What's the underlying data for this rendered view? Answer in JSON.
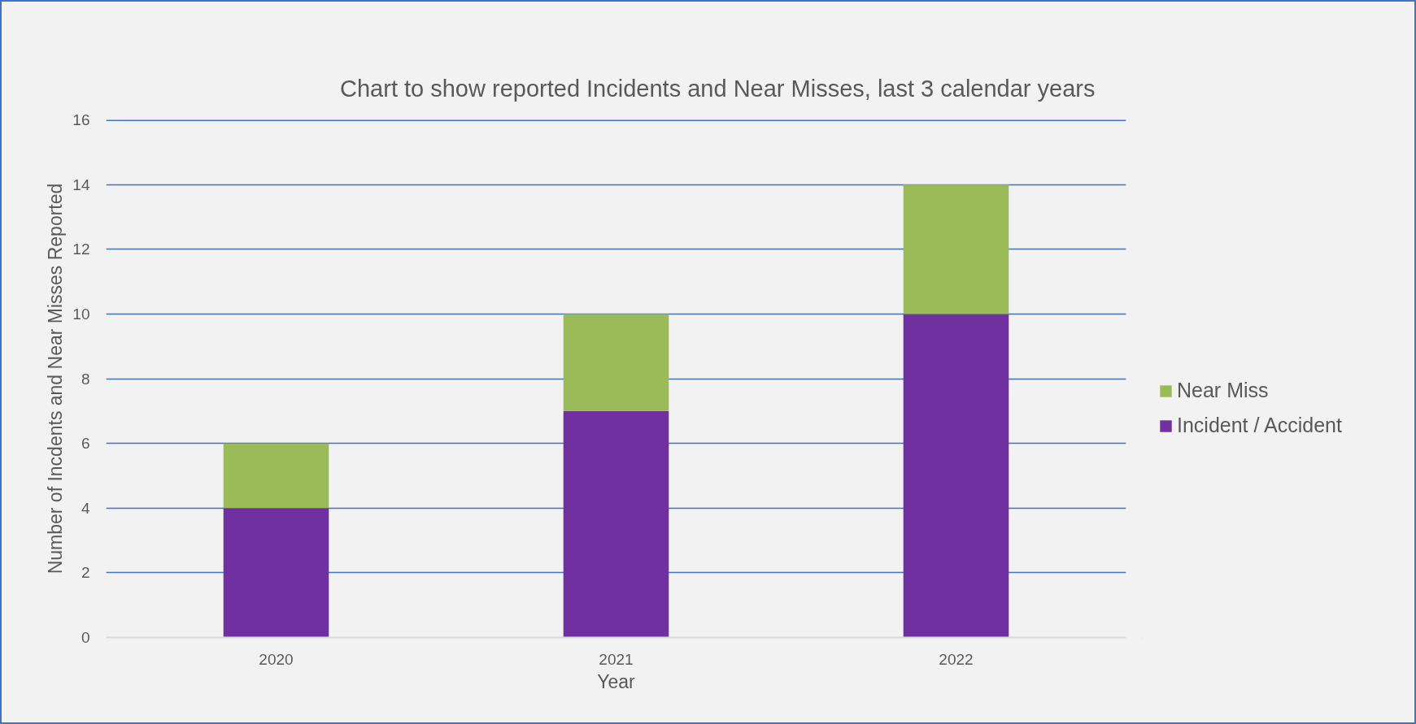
{
  "chart_data": {
    "type": "bar",
    "title": "Chart to show reported Incidents and Near Misses, last 3 calendar years",
    "xlabel": "Year",
    "ylabel": "Number of Incdents and Near Misses Reported",
    "categories": [
      "2020",
      "2021",
      "2022"
    ],
    "stacked": true,
    "series": [
      {
        "name": "Incident / Accident",
        "color": "#7030a0",
        "values": [
          4,
          7,
          10
        ]
      },
      {
        "name": "Near Miss",
        "color": "#9bbb59",
        "values": [
          2,
          3,
          4
        ]
      }
    ],
    "ylim": [
      0,
      16
    ],
    "yticks": [
      0,
      2,
      4,
      6,
      8,
      10,
      12,
      14,
      16
    ],
    "grid": "y",
    "legend": "right"
  }
}
